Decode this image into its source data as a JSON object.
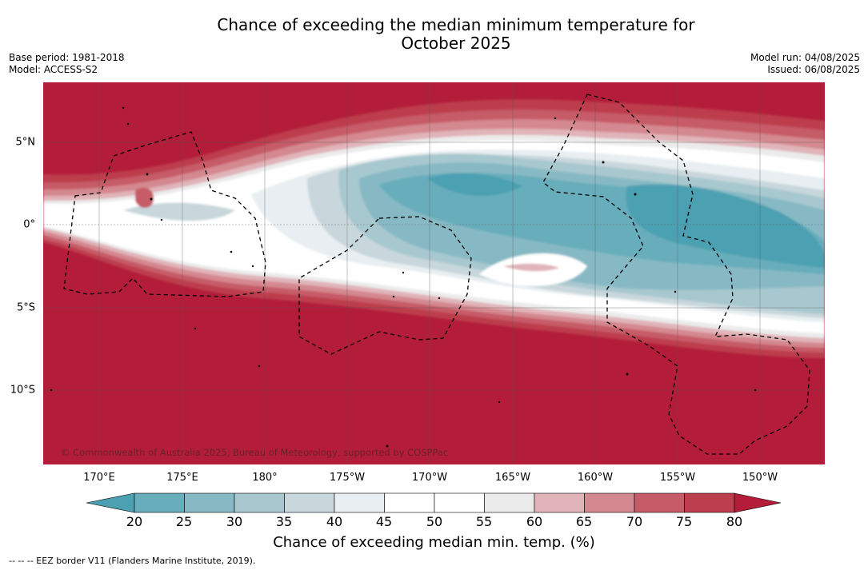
{
  "title": {
    "line1": "Chance of exceeding the median minimum temperature for",
    "line2": "October 2025"
  },
  "meta_left": {
    "base_period": "Base period: 1981-2018",
    "model": "Model: ACCESS-S2"
  },
  "meta_right": {
    "model_run": "Model run: 04/08/2025",
    "issued": "Issued: 06/08/2025"
  },
  "map": {
    "longitude_labels": [
      "170°E",
      "175°E",
      "180°",
      "175°W",
      "170°W",
      "165°W",
      "160°W",
      "155°W",
      "150°W"
    ],
    "latitude_labels": [
      "5°N",
      "0°",
      "5°S",
      "10°S"
    ],
    "copyright": "© Commonwealth of Australia 2025, Bureau of Meteorology, supported by COSPPac",
    "colors": {
      "p20_25": "#68adbb",
      "p25_30": "#87b9c4",
      "p30_35": "#a8c8cf",
      "p35_40": "#c8d7dc",
      "p40_45": "#e8eef1",
      "p45_55": "#ffffff",
      "p55_60": "#ebebeb",
      "p60_65": "#e0b4b9",
      "p65_70": "#d4888f",
      "p70_75": "#c65c68",
      "p75_80": "#bd3e4e",
      "p_above_80": "#b31d39",
      "p_below_20": "#4ba0b1"
    }
  },
  "colorbar": {
    "ticks": [
      "20",
      "25",
      "30",
      "35",
      "40",
      "45",
      "50",
      "55",
      "60",
      "65",
      "70",
      "75",
      "80"
    ],
    "label": "Chance of exceeding median min. temp. (%)"
  },
  "footer": "--  --  -- EEZ border V11 (Flanders Marine Institute, 2019)."
}
